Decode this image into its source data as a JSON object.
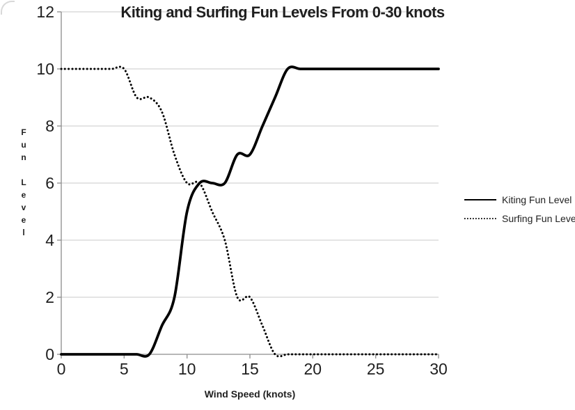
{
  "colors": {
    "series": "#000000",
    "axis": "#8c8c8c",
    "gridline": "#c9c9c9",
    "text": "#1f1f1f",
    "background": "#ffffff"
  },
  "chart_data": {
    "type": "line",
    "title": "Kiting and Surfing Fun Levels From 0-30 knots",
    "xlabel": "Wind Speed (knots)",
    "ylabel": "Fun Level",
    "xlim": [
      0,
      30
    ],
    "ylim": [
      0,
      12
    ],
    "x_ticks": [
      0,
      5,
      10,
      15,
      20,
      25,
      30
    ],
    "y_ticks": [
      0,
      2,
      4,
      6,
      8,
      10,
      12
    ],
    "grid": "horizontal-only",
    "legend_position": "right-center",
    "smoothing": "spline",
    "x": [
      0,
      1,
      2,
      3,
      4,
      5,
      6,
      7,
      8,
      9,
      10,
      11,
      12,
      13,
      14,
      15,
      16,
      17,
      18,
      19,
      20,
      21,
      22,
      23,
      24,
      25,
      26,
      27,
      28,
      29,
      30
    ],
    "series": [
      {
        "name": "Kiting Fun Level",
        "line_style": "solid",
        "color": "#000000",
        "values": [
          0,
          0,
          0,
          0,
          0,
          0,
          0,
          0,
          1,
          2,
          5,
          6,
          6,
          6,
          7,
          7,
          8,
          9,
          10,
          10,
          10,
          10,
          10,
          10,
          10,
          10,
          10,
          10,
          10,
          10,
          10
        ]
      },
      {
        "name": "Surfing Fun Level",
        "line_style": "dotted",
        "color": "#000000",
        "values": [
          10,
          10,
          10,
          10,
          10,
          10,
          9,
          9,
          8.5,
          7,
          6,
          6,
          5,
          4,
          2,
          2,
          1,
          0,
          0,
          0,
          0,
          0,
          0,
          0,
          0,
          0,
          0,
          0,
          0,
          0,
          0
        ]
      }
    ]
  }
}
